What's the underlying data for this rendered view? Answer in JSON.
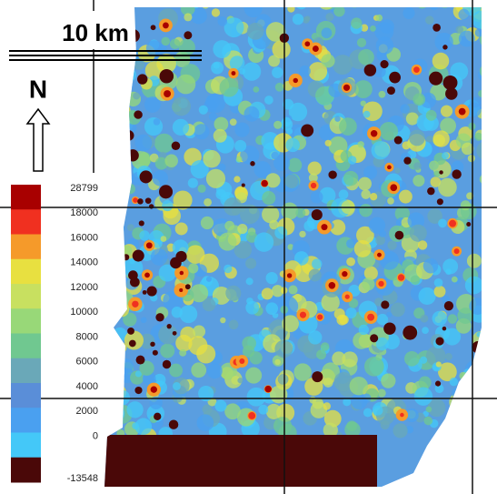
{
  "scale_bar": {
    "label": "10 km"
  },
  "north_arrow": {
    "label": "N"
  },
  "legend": {
    "items": [
      {
        "label": 28799,
        "color": "#a80000"
      },
      {
        "label": 18000,
        "color": "#f03020"
      },
      {
        "label": 16000,
        "color": "#f59a2a"
      },
      {
        "label": 14000,
        "color": "#e8e040"
      },
      {
        "label": 12000,
        "color": "#c8e060"
      },
      {
        "label": 10000,
        "color": "#98d878"
      },
      {
        "label": 8000,
        "color": "#70c890"
      },
      {
        "label": 6000,
        "color": "#6aa8b8"
      },
      {
        "label": 4000,
        "color": "#5a8ed8"
      },
      {
        "label": 2000,
        "color": "#4aa0f0"
      },
      {
        "label": 0,
        "color": "#44c8f8"
      },
      {
        "label": -13548,
        "color": "#4a0808"
      }
    ]
  }
}
